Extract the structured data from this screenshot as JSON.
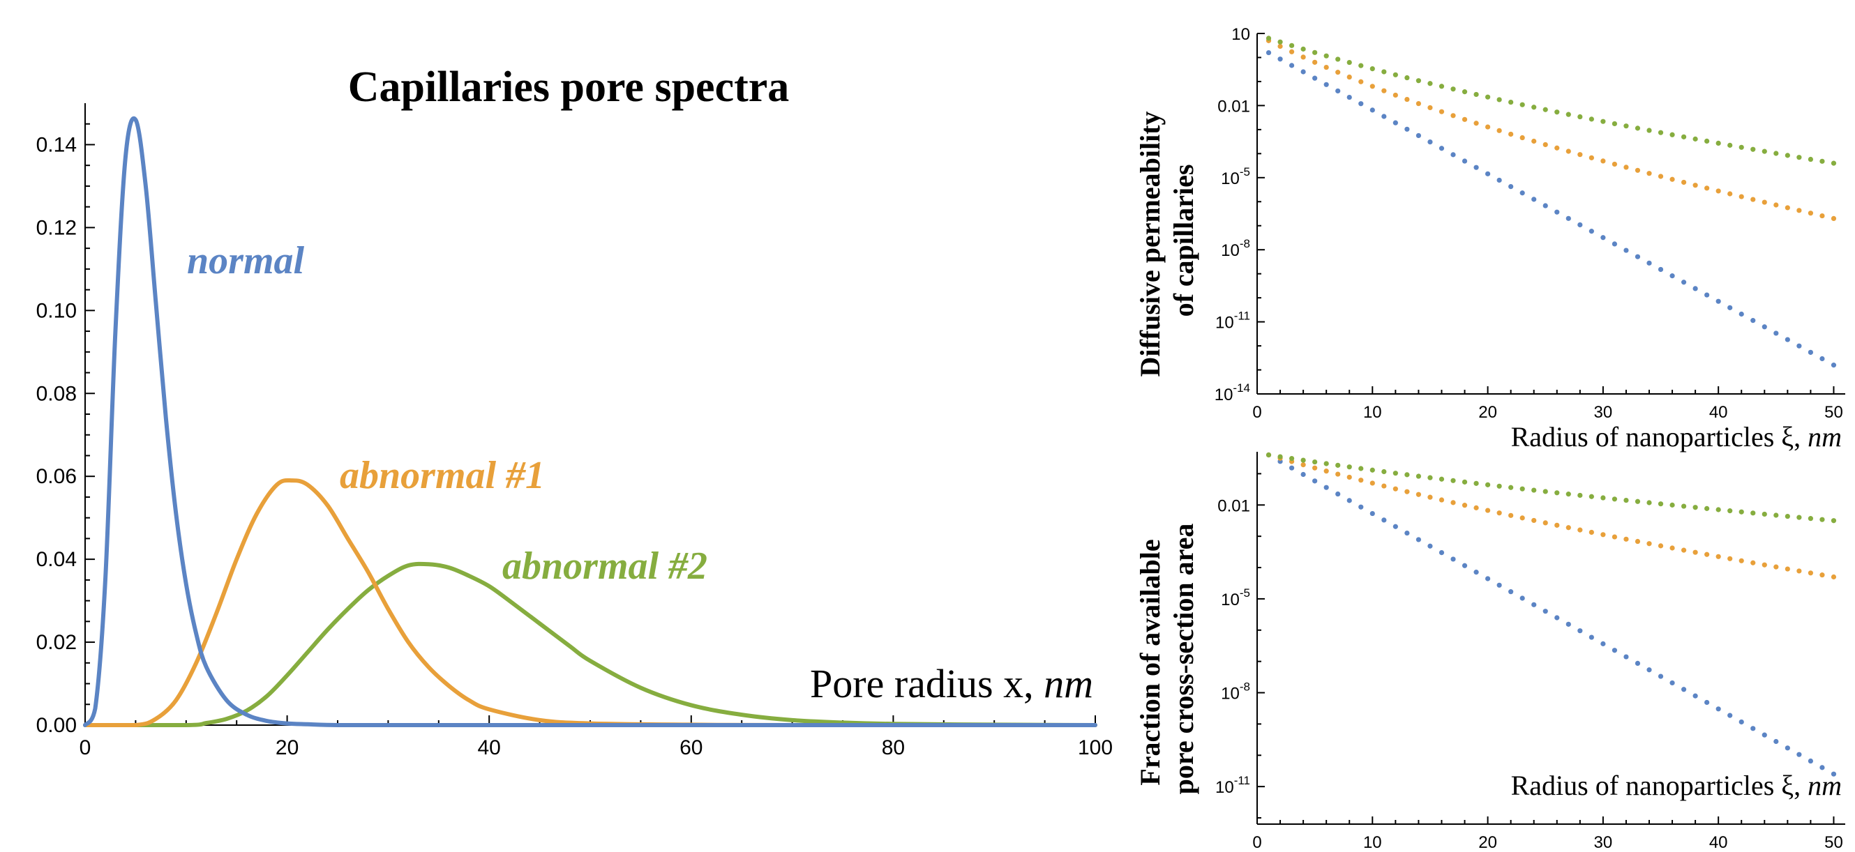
{
  "colors": {
    "normal": "#5b84c4",
    "abnormal1": "#e8a03a",
    "abnormal2": "#86ad3f"
  },
  "chart_data": [
    {
      "id": "pore-spectra",
      "type": "line",
      "title": "Capillaries pore spectra",
      "xlabel_main": "Pore radius x, ",
      "xlabel_unit": "nm",
      "xlim": [
        0,
        100
      ],
      "ylim": [
        0,
        0.15
      ],
      "xticks": [
        0,
        20,
        40,
        60,
        80,
        100
      ],
      "xtick_labels": [
        "0",
        "20",
        "40",
        "60",
        "80",
        "100"
      ],
      "yticks": [
        0,
        0.02,
        0.04,
        0.06,
        0.08,
        0.1,
        0.12,
        0.14
      ],
      "ytick_labels": [
        "0.00",
        "0.02",
        "0.04",
        "0.06",
        "0.08",
        "0.10",
        "0.12",
        "0.14"
      ],
      "series": [
        {
          "name": "normal",
          "color_key": "normal",
          "x": [
            0,
            1,
            2,
            3,
            4,
            5,
            6,
            7,
            8,
            9,
            10,
            11,
            12,
            14,
            16,
            18,
            20,
            22,
            25,
            30,
            40,
            100
          ],
          "y": [
            0,
            0.004,
            0.035,
            0.095,
            0.137,
            0.146,
            0.13,
            0.102,
            0.074,
            0.051,
            0.034,
            0.022,
            0.014,
            0.006,
            0.0025,
            0.001,
            0.0004,
            0.0002,
            0,
            0,
            0,
            0
          ]
        },
        {
          "name": "abnormal #1",
          "color_key": "abnormal1",
          "x": [
            0,
            5,
            7,
            9,
            11,
            13,
            15,
            17,
            19,
            20.5,
            22,
            24,
            26,
            28,
            30,
            32,
            34,
            36,
            38,
            40,
            45,
            50,
            60,
            70,
            100
          ],
          "y": [
            0,
            0,
            0.0015,
            0.006,
            0.015,
            0.027,
            0.04,
            0.051,
            0.058,
            0.059,
            0.058,
            0.053,
            0.045,
            0.037,
            0.028,
            0.02,
            0.014,
            0.0095,
            0.006,
            0.0038,
            0.0012,
            0.0004,
            0.0001,
            0,
            0
          ]
        },
        {
          "name": "abnormal #2",
          "color_key": "abnormal2",
          "x": [
            0,
            10,
            12,
            14,
            16,
            18,
            20,
            22,
            24,
            26,
            28,
            30,
            32,
            34,
            36,
            38,
            40,
            42,
            45,
            48,
            50,
            55,
            60,
            65,
            70,
            75,
            80,
            90,
            100
          ],
          "y": [
            0,
            0,
            0.0005,
            0.0015,
            0.0035,
            0.007,
            0.012,
            0.0175,
            0.023,
            0.028,
            0.0325,
            0.036,
            0.0385,
            0.0388,
            0.038,
            0.036,
            0.0335,
            0.03,
            0.0245,
            0.019,
            0.0155,
            0.009,
            0.0048,
            0.0025,
            0.0012,
            0.0006,
            0.0003,
            0.0001,
            0
          ]
        }
      ],
      "annotations": [
        {
          "text": "normal",
          "color_key": "normal"
        },
        {
          "text": "abnormal #1",
          "color_key": "abnormal1"
        },
        {
          "text": "abnormal #2",
          "color_key": "abnormal2"
        }
      ]
    },
    {
      "id": "diffusive-permeability",
      "type": "scatter",
      "ylabel_line1": "Diffusive permeability",
      "ylabel_line2": "of capillaries",
      "xlabel_main": "Radius of nanoparticles ξ, ",
      "xlabel_unit": "nm",
      "xlim": [
        0,
        51
      ],
      "ylog10": [
        -14,
        1
      ],
      "xticks": [
        0,
        10,
        20,
        30,
        40,
        50
      ],
      "xtick_labels": [
        "0",
        "10",
        "20",
        "30",
        "40",
        "50"
      ],
      "yticks_log10": [
        1,
        -2,
        -5,
        -8,
        -11,
        -14
      ],
      "ytick_labels": [
        {
          "base": "10",
          "exp": ""
        },
        {
          "base": "0.01",
          "exp": ""
        },
        {
          "base": "10",
          "exp": "-5"
        },
        {
          "base": "10",
          "exp": "-8"
        },
        {
          "base": "10",
          "exp": "-11"
        },
        {
          "base": "10",
          "exp": "-14"
        }
      ],
      "series": [
        {
          "name": "normal",
          "color_key": "normal",
          "x_start": 1,
          "x_end": 50,
          "step": 1,
          "log10_start": 0.2,
          "log10_end": -12.8
        },
        {
          "name": "abnormal #1",
          "color_key": "abnormal1",
          "x_start": 1,
          "x_end": 50,
          "step": 1,
          "log10_start": 0.7,
          "log10_end": -6.7,
          "curvature": 0.6
        },
        {
          "name": "abnormal #2",
          "color_key": "abnormal2",
          "x_start": 1,
          "x_end": 50,
          "step": 1,
          "log10_start": 0.8,
          "log10_end": -4.4,
          "curvature": 0.5
        }
      ]
    },
    {
      "id": "available-fraction",
      "type": "scatter",
      "ylabel_line1": "Fraction of available",
      "ylabel_line2": "pore cross-section area",
      "xlabel_main": "Radius of nanoparticles ξ, ",
      "xlabel_unit": "nm",
      "xlim": [
        0,
        51
      ],
      "ylog10": [
        -12.2,
        -0.3
      ],
      "xticks": [
        0,
        10,
        20,
        30,
        40,
        50
      ],
      "xtick_labels": [
        "0",
        "10",
        "20",
        "30",
        "40",
        "50"
      ],
      "yticks_log10": [
        -2,
        -5,
        -8,
        -11
      ],
      "ytick_labels": [
        {
          "base": "0.01",
          "exp": ""
        },
        {
          "base": "10",
          "exp": "-5"
        },
        {
          "base": "10",
          "exp": "-8"
        },
        {
          "base": "10",
          "exp": "-11"
        }
      ],
      "series": [
        {
          "name": "normal",
          "color_key": "normal",
          "x_start": 1,
          "x_end": 50,
          "step": 1,
          "log10_start": -0.4,
          "log10_end": -10.6
        },
        {
          "name": "abnormal #1",
          "color_key": "abnormal1",
          "x_start": 1,
          "x_end": 50,
          "step": 1,
          "log10_start": -0.4,
          "log10_end": -4.3,
          "curvature": 0.4
        },
        {
          "name": "abnormal #2",
          "color_key": "abnormal2",
          "x_start": 1,
          "x_end": 50,
          "step": 1,
          "log10_start": -0.4,
          "log10_end": -2.5,
          "curvature": 0.4
        }
      ]
    }
  ]
}
